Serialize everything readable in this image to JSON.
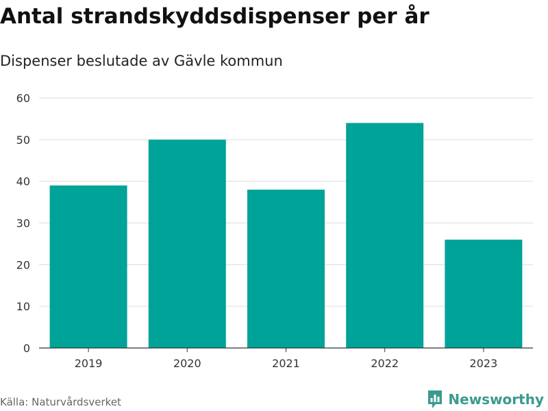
{
  "title": "Antal strandskyddsdispenser per år",
  "subtitle": "Dispenser beslutade av Gävle kommun",
  "source": "Källa: Naturvårdsverket",
  "brand": {
    "name": "Newsworthy",
    "icon": "newsworthy-logo-icon",
    "color": "#3a9a8c"
  },
  "chart_data": {
    "type": "bar",
    "categories": [
      "2019",
      "2020",
      "2021",
      "2022",
      "2023"
    ],
    "values": [
      39,
      50,
      38,
      54,
      26
    ],
    "ylim": [
      0,
      60
    ],
    "yticks": [
      0,
      10,
      20,
      30,
      40,
      50,
      60
    ],
    "grid": true,
    "bar_color": "#00a398",
    "legend": "none"
  }
}
